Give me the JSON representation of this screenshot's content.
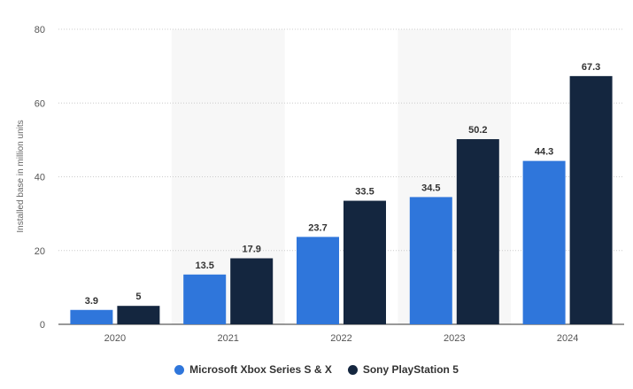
{
  "chart_data": {
    "type": "bar",
    "categories": [
      "2020",
      "2021",
      "2022",
      "2023",
      "2024"
    ],
    "series": [
      {
        "name": "Microsoft Xbox Series S & X",
        "color": "#2f76db",
        "values": [
          3.9,
          13.5,
          23.7,
          34.5,
          44.3
        ],
        "labels": [
          "3.9",
          "13.5",
          "23.7",
          "34.5",
          "44.3"
        ]
      },
      {
        "name": "Sony PlayStation 5",
        "color": "#14263f",
        "values": [
          5,
          17.9,
          33.5,
          50.2,
          67.3
        ],
        "labels": [
          "5",
          "17.9",
          "33.5",
          "50.2",
          "67.3"
        ]
      }
    ],
    "ylabel": "Installed base in million units",
    "xlabel": "",
    "ylim": [
      0,
      80
    ],
    "yticks": [
      "0",
      "20",
      "40",
      "60",
      "80"
    ],
    "grid": true,
    "legend_position": "bottom-center"
  }
}
